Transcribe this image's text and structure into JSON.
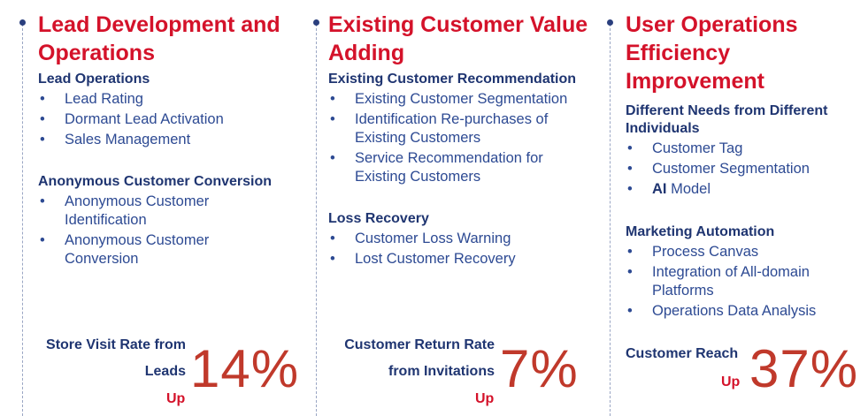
{
  "columns": [
    {
      "title_line1": "Lead Development and",
      "title_line2": "Operations",
      "sections": [
        {
          "heading": "Lead Operations",
          "items": [
            "Lead Rating",
            "Dormant Lead Activation",
            "Sales Management"
          ]
        },
        {
          "heading": "Anonymous Customer Conversion",
          "items": [
            "Anonymous Customer\nIdentification",
            "Anonymous Customer\nConversion"
          ]
        }
      ],
      "stat": {
        "label_line1": "Store Visit Rate from",
        "label_line2": "Leads",
        "up": "Up",
        "value": "14%"
      }
    },
    {
      "title_line1": "Existing Customer Value",
      "title_line2": "Adding",
      "sections": [
        {
          "heading": "Existing Customer Recommendation",
          "items": [
            "Existing Customer Segmentation",
            "Identification Re-purchases of\nExisting Customers",
            "Service Recommendation for\nExisting Customers"
          ]
        },
        {
          "heading": "Loss Recovery",
          "items": [
            "Customer Loss Warning",
            "Lost Customer Recovery"
          ]
        }
      ],
      "stat": {
        "label_line1": "Customer Return Rate",
        "label_line2": "from Invitations",
        "up": "Up",
        "value": "7%"
      }
    },
    {
      "title_line1": "User Operations",
      "title_line2": "Efficiency",
      "title_line3": "Improvement",
      "sections": [
        {
          "heading_line1": "Different Needs from Different",
          "heading_line2": "Individuals",
          "items": [
            "Customer Tag",
            "Customer Segmentation"
          ],
          "ai_bold": "AI",
          "ai_rest": " Model"
        },
        {
          "heading": "Marketing Automation",
          "items": [
            "Process Canvas",
            "Integration of All-domain\nPlatforms",
            "Operations Data Analysis"
          ]
        }
      ],
      "stat": {
        "label_line1": "Customer Reach",
        "up": "Up",
        "value": "37%"
      }
    }
  ]
}
